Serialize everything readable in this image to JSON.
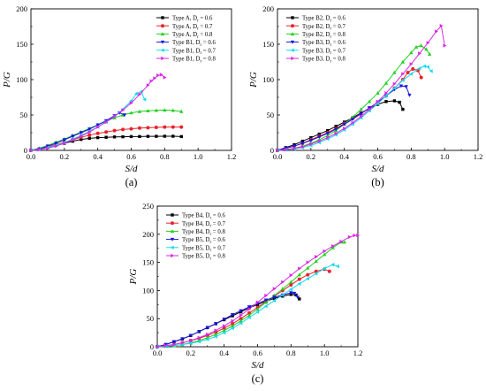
{
  "chart_data": [
    {
      "type": "line",
      "panel_label": "(a)",
      "xlabel": "S/d",
      "ylabel": "P/G",
      "xlim": [
        0.0,
        1.2
      ],
      "ylim": [
        0,
        200
      ],
      "xticks": [
        "0.0",
        "0.2",
        "0.4",
        "0.6",
        "0.8",
        "1.0",
        "1.2"
      ],
      "yticks": [
        "0",
        "50",
        "100",
        "150",
        "200"
      ],
      "legend_position": "top-right",
      "series": [
        {
          "name": "Type A, D_r = 0.6",
          "legend_main": "Type A, D",
          "legend_sub": "r",
          "legend_tail": " = 0.6",
          "color": "#000000",
          "marker": "square",
          "x": [
            0,
            0.05,
            0.1,
            0.15,
            0.2,
            0.25,
            0.3,
            0.35,
            0.4,
            0.45,
            0.5,
            0.55,
            0.6,
            0.65,
            0.7,
            0.75,
            0.8,
            0.85,
            0.9
          ],
          "y": [
            0,
            2,
            4.5,
            7,
            10,
            13,
            15.5,
            17,
            18,
            18.5,
            19,
            19.2,
            19.5,
            19.6,
            19.8,
            19.9,
            20,
            20,
            19.5
          ]
        },
        {
          "name": "Type A, D_r = 0.7",
          "legend_main": "Type A, D",
          "legend_sub": "r",
          "legend_tail": " = 0.7",
          "color": "#e8232a",
          "marker": "circle",
          "x": [
            0,
            0.05,
            0.1,
            0.15,
            0.2,
            0.25,
            0.3,
            0.35,
            0.4,
            0.45,
            0.5,
            0.55,
            0.6,
            0.65,
            0.7,
            0.75,
            0.8,
            0.85,
            0.9
          ],
          "y": [
            0,
            2,
            5,
            8,
            11.5,
            15,
            18.5,
            21.5,
            24,
            26,
            28,
            29.5,
            30.5,
            31.5,
            32,
            32.5,
            33,
            33,
            33
          ]
        },
        {
          "name": "Type A, D_r = 0.8",
          "legend_main": "Type A, D",
          "legend_sub": "r",
          "legend_tail": " = 0.8",
          "color": "#1fd11f",
          "marker": "triangle-up",
          "x": [
            0,
            0.05,
            0.1,
            0.15,
            0.2,
            0.25,
            0.3,
            0.35,
            0.4,
            0.45,
            0.5,
            0.55,
            0.6,
            0.65,
            0.7,
            0.75,
            0.8,
            0.85,
            0.9
          ],
          "y": [
            0,
            3,
            7,
            11.5,
            16,
            21,
            26,
            31,
            36,
            41,
            46,
            50,
            53,
            55,
            56,
            56.5,
            57,
            56.5,
            55
          ]
        },
        {
          "name": "Type B1, D_r = 0.6",
          "legend_main": "Type B1, D",
          "legend_sub": "r",
          "legend_tail": " = 0.6",
          "color": "#1515e0",
          "marker": "triangle-down",
          "x": [
            0,
            0.05,
            0.1,
            0.15,
            0.2,
            0.25,
            0.3,
            0.35,
            0.4,
            0.45,
            0.5,
            0.53,
            0.56
          ],
          "y": [
            0,
            2,
            6,
            10,
            15,
            20,
            25,
            30,
            36,
            42,
            49,
            53,
            50
          ]
        },
        {
          "name": "Type B1, D_r = 0.7",
          "legend_main": "Type B1, D",
          "legend_sub": "r",
          "legend_tail": " = 0.7",
          "color": "#19d8ef",
          "marker": "triangle-left",
          "x": [
            0,
            0.05,
            0.1,
            0.15,
            0.2,
            0.25,
            0.3,
            0.35,
            0.4,
            0.45,
            0.5,
            0.55,
            0.6,
            0.63,
            0.66,
            0.68
          ],
          "y": [
            0,
            1,
            4,
            7,
            11,
            16,
            21,
            27,
            33,
            40,
            48,
            58,
            70,
            80,
            83,
            72
          ]
        },
        {
          "name": "Type B1, D_r = 0.8",
          "legend_main": "Type B1, D",
          "legend_sub": "r",
          "legend_tail": " = 0.8",
          "color": "#d928e5",
          "marker": "triangle-right",
          "x": [
            0,
            0.05,
            0.1,
            0.15,
            0.2,
            0.25,
            0.3,
            0.35,
            0.4,
            0.45,
            0.5,
            0.55,
            0.6,
            0.65,
            0.7,
            0.72,
            0.74,
            0.76,
            0.78,
            0.8
          ],
          "y": [
            0,
            1,
            3,
            6,
            10,
            15,
            20,
            26,
            33,
            40,
            48,
            57,
            67,
            79,
            92,
            98,
            102,
            106,
            107,
            103
          ]
        }
      ]
    },
    {
      "type": "line",
      "panel_label": "(b)",
      "xlabel": "S/d",
      "ylabel": "P/G",
      "xlim": [
        0.0,
        1.2
      ],
      "ylim": [
        0,
        200
      ],
      "xticks": [
        "0.0",
        "0.2",
        "0.4",
        "0.6",
        "0.8",
        "1.0",
        "1.2"
      ],
      "yticks": [
        "0",
        "50",
        "100",
        "150",
        "200"
      ],
      "legend_position": "top-left",
      "series": [
        {
          "name": "Type B2, D_r = 0.6",
          "legend_main": "Type B2, D",
          "legend_sub": "r",
          "legend_tail": " = 0.6",
          "color": "#000000",
          "marker": "square",
          "x": [
            0,
            0.05,
            0.1,
            0.15,
            0.2,
            0.25,
            0.3,
            0.35,
            0.4,
            0.45,
            0.5,
            0.55,
            0.6,
            0.65,
            0.7,
            0.73,
            0.75
          ],
          "y": [
            0,
            4,
            8,
            13,
            18,
            23,
            28,
            34,
            40,
            46,
            53,
            59,
            65,
            69,
            70,
            68,
            58
          ]
        },
        {
          "name": "Type B2, D_r = 0.7",
          "legend_main": "Type B2, D",
          "legend_sub": "r",
          "legend_tail": " = 0.7",
          "color": "#e8232a",
          "marker": "circle",
          "x": [
            0,
            0.05,
            0.1,
            0.15,
            0.2,
            0.25,
            0.3,
            0.35,
            0.4,
            0.45,
            0.5,
            0.55,
            0.6,
            0.65,
            0.7,
            0.75,
            0.78,
            0.81,
            0.84,
            0.86
          ],
          "y": [
            0,
            3,
            6,
            10,
            15,
            20,
            25,
            31,
            38,
            45,
            52,
            60,
            68,
            77,
            88,
            100,
            110,
            115,
            113,
            103
          ]
        },
        {
          "name": "Type B2, D_r = 0.8",
          "legend_main": "Type B2, D",
          "legend_sub": "r",
          "legend_tail": " = 0.8",
          "color": "#1fd11f",
          "marker": "triangle-up",
          "x": [
            0,
            0.05,
            0.1,
            0.15,
            0.2,
            0.25,
            0.3,
            0.35,
            0.4,
            0.45,
            0.5,
            0.55,
            0.6,
            0.65,
            0.7,
            0.75,
            0.8,
            0.83,
            0.86,
            0.89,
            0.91
          ],
          "y": [
            0,
            1,
            3,
            6,
            10,
            15,
            21,
            28,
            37,
            47,
            58,
            69,
            81,
            95,
            110,
            125,
            138,
            146,
            148,
            143,
            136
          ]
        },
        {
          "name": "Type B3, D_r = 0.6",
          "legend_main": "Type B3, D",
          "legend_sub": "r",
          "legend_tail": " = 0.6",
          "color": "#1515e0",
          "marker": "triangle-down",
          "x": [
            0,
            0.05,
            0.1,
            0.15,
            0.2,
            0.25,
            0.3,
            0.35,
            0.4,
            0.45,
            0.5,
            0.55,
            0.6,
            0.65,
            0.7,
            0.74,
            0.77,
            0.79
          ],
          "y": [
            0,
            3,
            6,
            10,
            14,
            19,
            24,
            30,
            37,
            44,
            52,
            60,
            68,
            77,
            86,
            91,
            90,
            78
          ]
        },
        {
          "name": "Type B3, D_r = 0.7",
          "legend_main": "Type B3, D",
          "legend_sub": "r",
          "legend_tail": " = 0.7",
          "color": "#19d8ef",
          "marker": "triangle-left",
          "x": [
            0,
            0.05,
            0.1,
            0.15,
            0.2,
            0.25,
            0.3,
            0.35,
            0.4,
            0.45,
            0.5,
            0.55,
            0.6,
            0.65,
            0.7,
            0.75,
            0.8,
            0.85,
            0.88,
            0.9,
            0.92
          ],
          "y": [
            0,
            1,
            2,
            4,
            7,
            11,
            16,
            22,
            29,
            37,
            46,
            56,
            66,
            77,
            88,
            99,
            108,
            116,
            119,
            118,
            112
          ]
        },
        {
          "name": "Type B3, D_r = 0.8",
          "legend_main": "Type B3, D",
          "legend_sub": "r",
          "legend_tail": " = 0.8",
          "color": "#d928e5",
          "marker": "triangle-right",
          "x": [
            0,
            0.05,
            0.1,
            0.15,
            0.2,
            0.25,
            0.3,
            0.35,
            0.4,
            0.45,
            0.5,
            0.55,
            0.6,
            0.65,
            0.7,
            0.75,
            0.8,
            0.85,
            0.9,
            0.95,
            0.98,
            1.0
          ],
          "y": [
            0,
            1,
            3,
            5,
            9,
            13,
            18,
            24,
            31,
            39,
            48,
            58,
            69,
            81,
            94,
            108,
            122,
            137,
            152,
            168,
            176,
            148
          ]
        }
      ]
    },
    {
      "type": "line",
      "panel_label": "(c)",
      "xlabel": "S/d",
      "ylabel": "P/G",
      "xlim": [
        0.0,
        1.2
      ],
      "ylim": [
        0,
        250
      ],
      "xticks": [
        "0.0",
        "0.2",
        "0.4",
        "0.6",
        "0.8",
        "1.0",
        "1.2"
      ],
      "yticks": [
        "0",
        "50",
        "100",
        "150",
        "200",
        "250"
      ],
      "legend_position": "top-left",
      "series": [
        {
          "name": "Type B4, D_r = 0.6",
          "legend_main": "Type B4, D",
          "legend_sub": "r",
          "legend_tail": " = 0.6",
          "color": "#000000",
          "marker": "square",
          "x": [
            0,
            0.05,
            0.1,
            0.15,
            0.2,
            0.25,
            0.3,
            0.35,
            0.4,
            0.45,
            0.5,
            0.55,
            0.6,
            0.65,
            0.7,
            0.75,
            0.8,
            0.83,
            0.85
          ],
          "y": [
            0,
            4,
            9,
            14,
            20,
            27,
            34,
            41,
            48,
            55,
            62,
            69,
            75,
            81,
            86,
            90,
            93,
            92,
            85
          ]
        },
        {
          "name": "Type B4, D_r = 0.7",
          "legend_main": "Type B4, D",
          "legend_sub": "r",
          "legend_tail": " = 0.7",
          "color": "#e8232a",
          "marker": "circle",
          "x": [
            0,
            0.05,
            0.1,
            0.15,
            0.2,
            0.25,
            0.3,
            0.35,
            0.4,
            0.45,
            0.5,
            0.55,
            0.6,
            0.65,
            0.7,
            0.75,
            0.8,
            0.85,
            0.9,
            0.95,
            1.0,
            1.03
          ],
          "y": [
            0,
            2,
            4,
            7,
            11,
            15,
            20,
            26,
            33,
            41,
            50,
            60,
            70,
            80,
            90,
            100,
            110,
            120,
            128,
            134,
            138,
            134
          ]
        },
        {
          "name": "Type B4, D_r = 0.8",
          "legend_main": "Type B4, D",
          "legend_sub": "r",
          "legend_tail": " = 0.8",
          "color": "#1fd11f",
          "marker": "triangle-up",
          "x": [
            0,
            0.05,
            0.1,
            0.15,
            0.2,
            0.25,
            0.3,
            0.35,
            0.4,
            0.45,
            0.5,
            0.55,
            0.6,
            0.65,
            0.7,
            0.75,
            0.8,
            0.85,
            0.9,
            0.95,
            1.0,
            1.05,
            1.1,
            1.12
          ],
          "y": [
            0,
            1,
            2,
            4,
            7,
            11,
            16,
            22,
            29,
            37,
            46,
            56,
            67,
            79,
            91,
            103,
            115,
            128,
            140,
            152,
            164,
            176,
            186,
            186
          ]
        },
        {
          "name": "Type B5, D_r = 0.6",
          "legend_main": "Type B5, D",
          "legend_sub": "r",
          "legend_tail": " = 0.6",
          "color": "#1515e0",
          "marker": "triangle-down",
          "x": [
            0,
            0.05,
            0.1,
            0.15,
            0.2,
            0.25,
            0.3,
            0.35,
            0.4,
            0.45,
            0.5,
            0.55,
            0.6,
            0.65,
            0.7,
            0.75,
            0.8,
            0.82,
            0.84
          ],
          "y": [
            0,
            4,
            9,
            14,
            20,
            27,
            34,
            41,
            49,
            57,
            64,
            71,
            77,
            83,
            88,
            92,
            96,
            95,
            88
          ]
        },
        {
          "name": "Type B5, D_r = 0.7",
          "legend_main": "Type B5, D",
          "legend_sub": "r",
          "legend_tail": " = 0.7",
          "color": "#19d8ef",
          "marker": "triangle-left",
          "x": [
            0,
            0.05,
            0.1,
            0.15,
            0.2,
            0.25,
            0.3,
            0.35,
            0.4,
            0.45,
            0.5,
            0.55,
            0.6,
            0.65,
            0.7,
            0.75,
            0.8,
            0.85,
            0.9,
            0.95,
            1.0,
            1.05,
            1.08
          ],
          "y": [
            0,
            1,
            2,
            4,
            6,
            9,
            13,
            18,
            25,
            33,
            42,
            52,
            62,
            72,
            82,
            92,
            102,
            112,
            121,
            130,
            139,
            146,
            143
          ]
        },
        {
          "name": "Type B5, D_r = 0.8",
          "legend_main": "Type B5, D",
          "legend_sub": "r",
          "legend_tail": " = 0.8",
          "color": "#d928e5",
          "marker": "triangle-right",
          "x": [
            0,
            0.05,
            0.1,
            0.15,
            0.2,
            0.25,
            0.3,
            0.35,
            0.4,
            0.45,
            0.5,
            0.55,
            0.6,
            0.65,
            0.7,
            0.75,
            0.8,
            0.85,
            0.9,
            0.95,
            1.0,
            1.05,
            1.1,
            1.15,
            1.18,
            1.2
          ],
          "y": [
            0,
            2,
            4,
            7,
            11,
            16,
            22,
            29,
            37,
            46,
            56,
            67,
            79,
            91,
            103,
            115,
            127,
            139,
            150,
            160,
            170,
            179,
            187,
            195,
            198,
            198
          ]
        }
      ]
    }
  ]
}
